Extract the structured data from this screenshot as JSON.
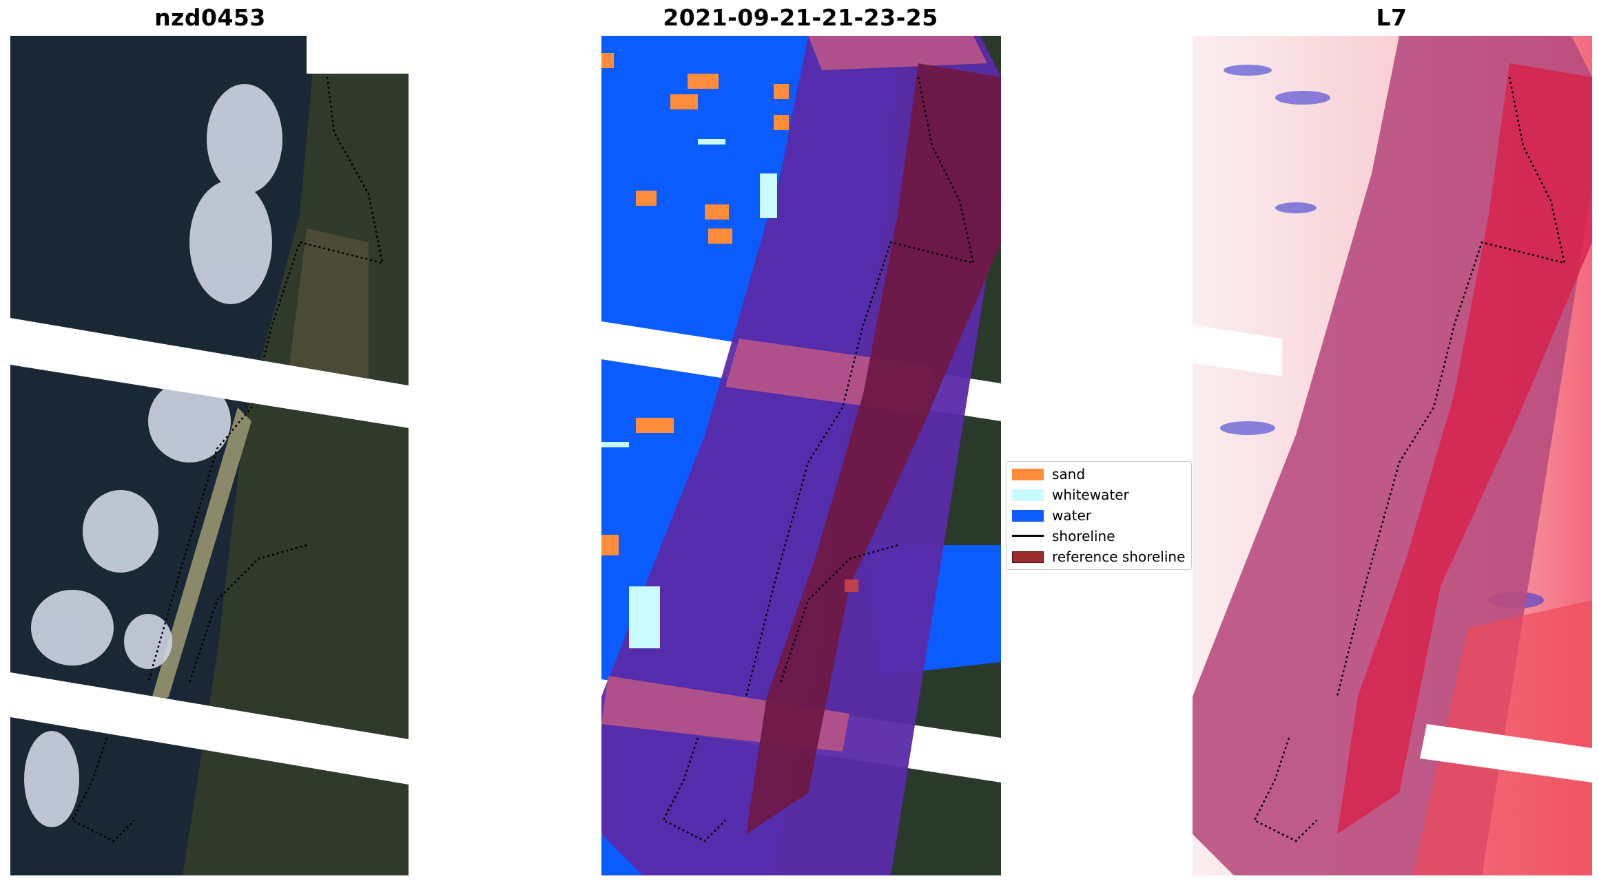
{
  "titles": {
    "left": "nzd0453",
    "middle": "2021-09-21-21-23-25",
    "right": "L7"
  },
  "legend": {
    "items": [
      {
        "label": "sand",
        "type": "patch",
        "color": "#ff8c3a"
      },
      {
        "label": "whitewater",
        "type": "patch",
        "color": "#c8fbff"
      },
      {
        "label": "water",
        "type": "patch",
        "color": "#0a5cff"
      },
      {
        "label": "shoreline",
        "type": "line",
        "color": "#000000"
      },
      {
        "label": "reference shoreline",
        "type": "patch",
        "color": "#9b2d30"
      }
    ]
  },
  "colors": {
    "dark_vegetation": "#27342a",
    "water_dark": "#1a2734",
    "cloud": "#dfe5f0",
    "class_water": "#0a5cff",
    "class_sand": "#ff8c3a",
    "class_whitewater": "#c8fbff",
    "overlay_purple": "#5a2aa8",
    "overlay_pink": "#b0508a",
    "overlay_maroon": "#6e1846",
    "index_red": "#e8203f",
    "index_blue": "#3a3ad0"
  }
}
